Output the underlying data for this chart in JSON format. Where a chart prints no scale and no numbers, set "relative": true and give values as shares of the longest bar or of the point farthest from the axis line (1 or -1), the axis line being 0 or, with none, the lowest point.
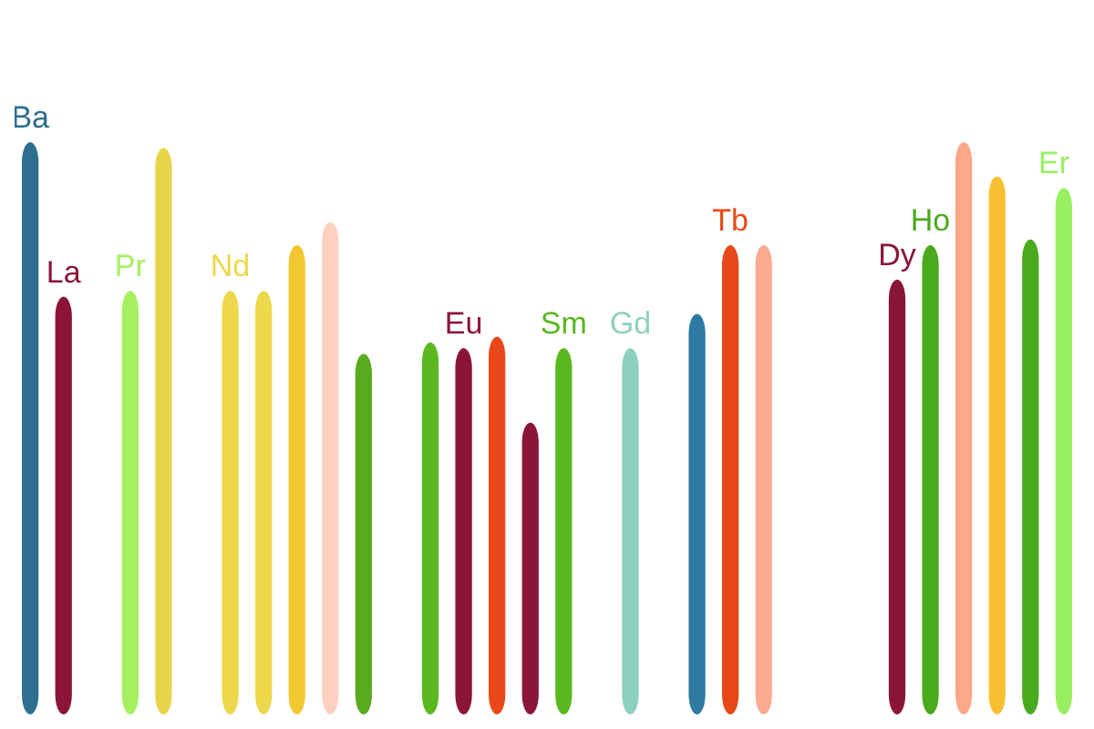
{
  "chart_data": {
    "type": "bar",
    "relative": true,
    "categories": [
      "Ba",
      "La",
      null,
      "Pr",
      null,
      null,
      "Nd",
      null,
      null,
      null,
      null,
      null,
      null,
      "Eu",
      null,
      null,
      "Sm",
      null,
      "Gd",
      null,
      null,
      "Tb",
      null,
      null,
      null,
      null,
      "Dy",
      "Ho",
      null,
      null,
      null,
      "Er"
    ],
    "values": [
      1.0,
      0.73,
      null,
      0.74,
      0.99,
      null,
      0.74,
      0.74,
      0.82,
      0.86,
      0.63,
      null,
      0.65,
      0.64,
      0.66,
      0.51,
      0.64,
      null,
      0.64,
      null,
      0.7,
      0.82,
      0.82,
      null,
      null,
      null,
      0.76,
      0.82,
      1.0,
      0.94,
      0.83,
      0.92
    ],
    "colors": [
      "#2e6e8e",
      "#8b1538",
      null,
      "#a6f060",
      "#e8d44a",
      null,
      "#ecd84a",
      "#ecd84a",
      "#f2c830",
      "#fdd0c0",
      "#5aaa1e",
      null,
      "#5ab81e",
      "#8b1538",
      "#e84818",
      "#8b1538",
      "#5ab81e",
      null,
      "#8ed0c0",
      null,
      "#2e7aa0",
      "#e84818",
      "#fcaa90",
      null,
      null,
      null,
      "#8b1538",
      "#4aaa1e",
      "#fca888",
      "#f8c030",
      "#4aaa1e",
      "#98f060"
    ]
  }
}
